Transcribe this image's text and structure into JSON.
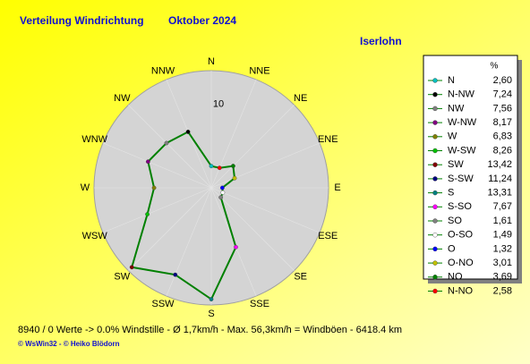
{
  "chart_data": {
    "type": "radar",
    "title": "Verteilung Windrichtung",
    "subtitle": "Oktober 2024",
    "location": "Iserlohn",
    "compass_labels": [
      "N",
      "NNE",
      "NE",
      "ENE",
      "E",
      "ESE",
      "SE",
      "SSE",
      "S",
      "SSW",
      "SW",
      "WSW",
      "W",
      "WNW",
      "NW",
      "NNW"
    ],
    "rlim": [
      0,
      14
    ],
    "rticks": [
      10
    ],
    "legend_header": "%",
    "categories": [
      "N",
      "N-NW",
      "NW",
      "W-NW",
      "W",
      "W-SW",
      "SW",
      "S-SW",
      "S",
      "S-SO",
      "SO",
      "O-SO",
      "O",
      "O-NO",
      "NO",
      "N-NO"
    ],
    "values": [
      2.6,
      7.24,
      7.56,
      8.17,
      6.83,
      8.26,
      13.42,
      11.24,
      13.31,
      7.67,
      1.61,
      1.49,
      1.32,
      3.01,
      3.69,
      2.58
    ],
    "value_labels": [
      "2,60",
      "7,24",
      "7,56",
      "8,17",
      "6,83",
      "8,26",
      "13,42",
      "11,24",
      "13,31",
      "7,67",
      "1,61",
      "1,49",
      "1,32",
      "3,01",
      "3,69",
      "2,58"
    ],
    "colors": [
      "#00c0c0",
      "#000000",
      "#808080",
      "#800080",
      "#808000",
      "#00c000",
      "#800000",
      "#000080",
      "#008080",
      "#ff00ff",
      "#808080",
      "#ffffff",
      "#0000ff",
      "#c0c000",
      "#008000",
      "#ff0000"
    ],
    "line_color": "#008000",
    "footer": "8940 / 0 Werte  -> 0.0% Windstille   -   Ø 1,7km/h  -  Max. 56,3km/h = Windböen   -   6418.4 km",
    "credits": "© WsWin32  -  © Heiko Blödorn"
  }
}
